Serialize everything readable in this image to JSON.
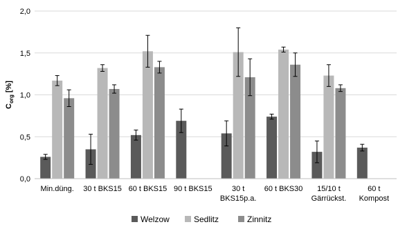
{
  "chart_data": {
    "type": "bar",
    "ylabel_main": "C",
    "ylabel_sub": "org",
    "ylabel_unit": " [%]",
    "ylim": [
      0,
      2.0
    ],
    "yticks": [
      0,
      0.5,
      1.0,
      1.5,
      2.0
    ],
    "ytick_labels": [
      "0,0",
      "0,5",
      "1,0",
      "1,5",
      "2,0"
    ],
    "grid": true,
    "legend_position": "bottom",
    "categories": [
      [
        "Min.düng."
      ],
      [
        "30 t BKS15"
      ],
      [
        "60 t BKS15"
      ],
      [
        "90 t BKS15"
      ],
      [
        "30 t",
        "BKS15p.a."
      ],
      [
        "60 t BKS30"
      ],
      [
        "15/10 t",
        "Gärrückst."
      ],
      [
        "60 t",
        "Kompost"
      ]
    ],
    "series": [
      {
        "name": "Welzow",
        "color": "#5a5a5a",
        "values": [
          0.26,
          0.35,
          0.52,
          0.69,
          0.54,
          0.74,
          0.32,
          0.37
        ],
        "errors": [
          0.03,
          0.18,
          0.06,
          0.14,
          0.15,
          0.03,
          0.13,
          0.04
        ]
      },
      {
        "name": "Sedlitz",
        "color": "#b8b8b8",
        "values": [
          1.17,
          1.32,
          1.52,
          null,
          1.51,
          1.54,
          1.23,
          null
        ],
        "errors": [
          0.06,
          0.04,
          0.19,
          null,
          0.29,
          0.03,
          0.13,
          null
        ]
      },
      {
        "name": "Zinnitz",
        "color": "#8c8c8c",
        "values": [
          0.96,
          1.07,
          1.33,
          null,
          1.21,
          1.36,
          1.08,
          null
        ],
        "errors": [
          0.1,
          0.05,
          0.07,
          null,
          0.22,
          0.14,
          0.04,
          null
        ]
      }
    ]
  }
}
